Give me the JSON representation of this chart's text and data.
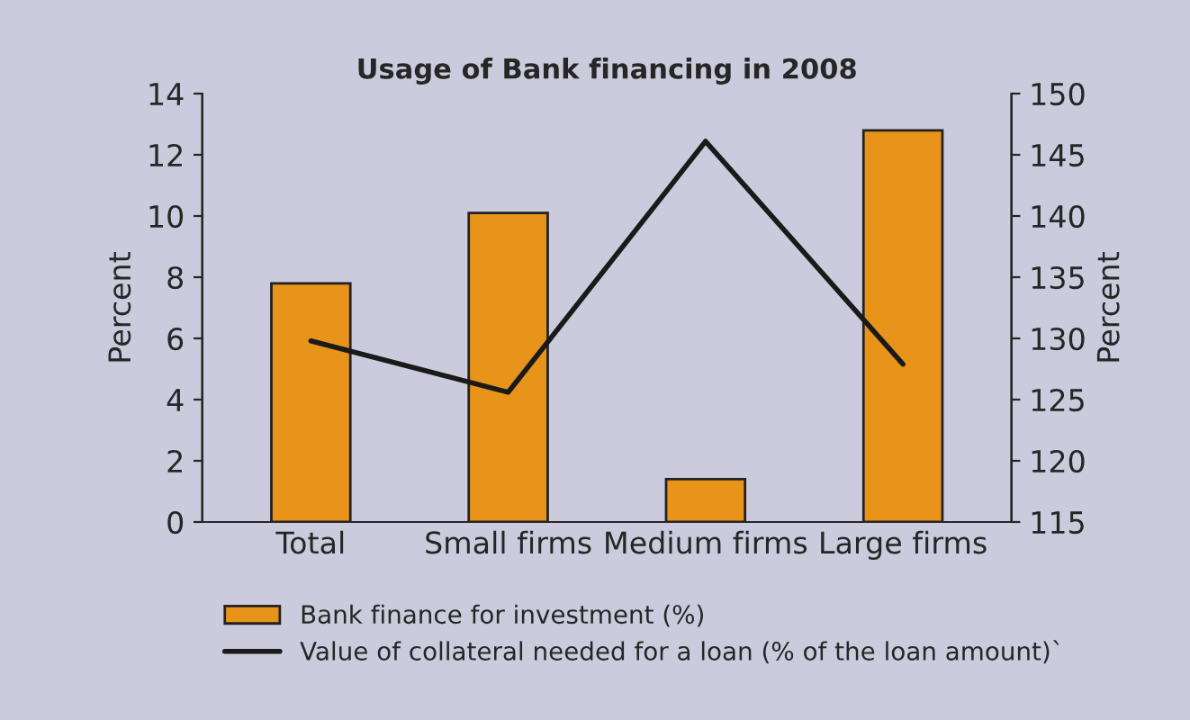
{
  "chart_data": {
    "type": "bar",
    "title": "Usage of Bank financing in 2008",
    "categories": [
      "Total",
      "Small firms",
      "Medium firms",
      "Large firms"
    ],
    "ylabel": "Percent",
    "y2label": "Percent",
    "series": [
      {
        "name": "Bank finance for investment (%)",
        "color": "#e8941a",
        "values": [
          7.8,
          10.1,
          1.4,
          12.8
        ]
      },
      {
        "name": "Value of collateral needed for a loan (% of the loan amount)`",
        "type": "line",
        "axis": "y2",
        "color": "#1a1a1a",
        "values": [
          129.8,
          125.6,
          146.1,
          127.9
        ]
      }
    ],
    "ylim": [
      0,
      14
    ],
    "yticks": [
      0,
      2,
      4,
      6,
      8,
      10,
      12,
      14
    ],
    "y2lim": [
      115,
      150
    ],
    "y2ticks": [
      115,
      120,
      125,
      130,
      135,
      140,
      145,
      150
    ],
    "grid": false,
    "legend": "bottom",
    "marker": "none",
    "line_style": "solid"
  }
}
